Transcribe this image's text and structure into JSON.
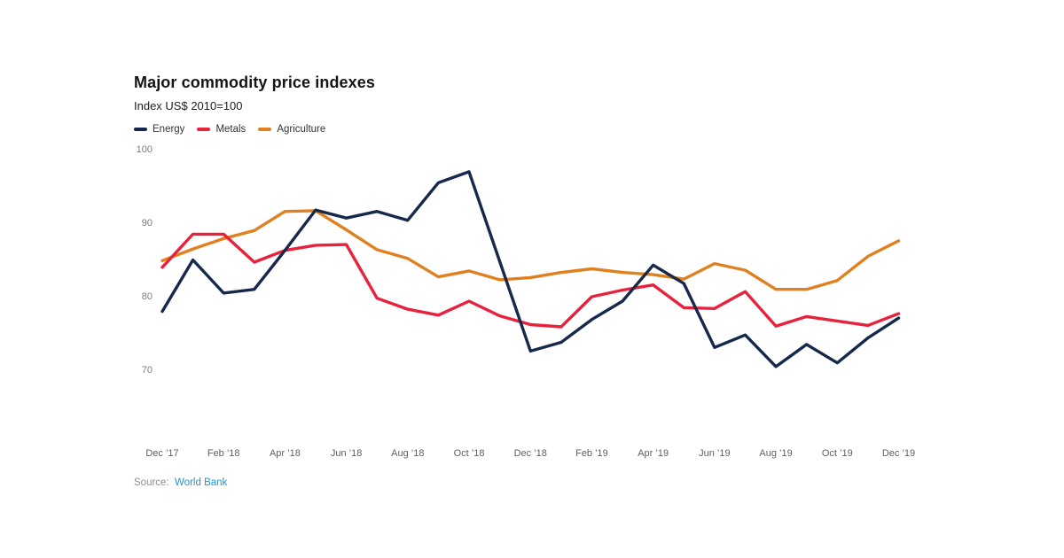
{
  "page": {
    "background": "#ffffff"
  },
  "header": {
    "title": "Major commodity price indexes",
    "subtitle": "Index US$ 2010=100"
  },
  "legend": [
    {
      "label": "Energy",
      "color": "#16294C"
    },
    {
      "label": "Metals",
      "color": "#E8213D"
    },
    {
      "label": "Agriculture",
      "color": "#E0801F"
    }
  ],
  "source": {
    "label": "Source:",
    "link_text": "World Bank",
    "link_color": "#2095D5"
  },
  "chart_data": {
    "type": "line",
    "title": "Major commodity price indexes",
    "subtitle": "Index US$ 2010=100",
    "x": [
      "Dec ’17",
      "Jan ’18",
      "Feb ’18",
      "Mar ’18",
      "Apr ’18",
      "May ’18",
      "Jun ’18",
      "Jul ’18",
      "Aug ’18",
      "Sep ’18",
      "Oct ’18",
      "Nov ’18",
      "Dec ’18",
      "Jan ’19",
      "Feb ’19",
      "Mar ’19",
      "Apr ’19",
      "May ’19",
      "Jun ’19",
      "Jul ’19",
      "Aug ’19",
      "Sep ’19",
      "Oct ’19",
      "Nov ’19",
      "Dec ’19"
    ],
    "x_tick_labels": [
      "Dec ’17",
      "Feb ’18",
      "Apr ’18",
      "Jun ’18",
      "Aug ’18",
      "Oct ’18",
      "Dec ’18",
      "Feb ’19",
      "Apr ’19",
      "Jun ’19",
      "Aug ’19",
      "Oct ’19",
      "Dec ’19"
    ],
    "yticks": [
      100,
      90,
      80,
      70
    ],
    "ylim": [
      70,
      100
    ],
    "grid": false,
    "legend_position": "top-left",
    "series": [
      {
        "name": "Energy",
        "color": "#16294C",
        "values": [
          78,
          85,
          80.5,
          81,
          86.3,
          91.8,
          90.7,
          91.6,
          90.4,
          95.5,
          97,
          84.8,
          72.6,
          73.8,
          76.9,
          79.4,
          84.3,
          81.8,
          73.1,
          74.8,
          70.5,
          73.5,
          71,
          74.4,
          77.1
        ]
      },
      {
        "name": "Metals",
        "color": "#E8213D",
        "values": [
          84,
          88.5,
          88.5,
          84.7,
          86.3,
          87,
          87.1,
          79.8,
          78.3,
          77.5,
          79.4,
          77.4,
          76.2,
          75.9,
          80,
          80.9,
          81.6,
          78.5,
          78.4,
          80.7,
          76,
          77.3,
          76.7,
          76.1,
          77.7
        ]
      },
      {
        "name": "Agriculture",
        "color": "#E0801F",
        "values": [
          84.9,
          86.5,
          87.9,
          89,
          91.6,
          91.7,
          89.1,
          86.4,
          85.2,
          82.7,
          83.5,
          82.3,
          82.6,
          83.3,
          83.8,
          83.3,
          83,
          82.4,
          84.5,
          83.6,
          81,
          81,
          82.2,
          85.5,
          87.6
        ]
      }
    ]
  }
}
